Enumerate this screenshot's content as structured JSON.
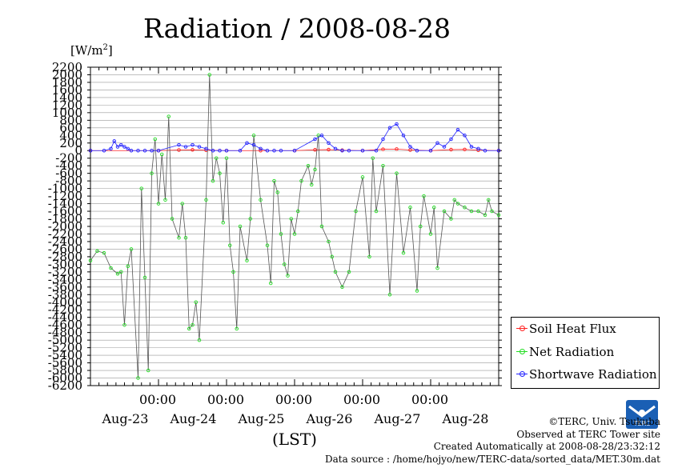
{
  "header": {
    "title": "Radiation / 2008-08-28",
    "unit_prefix": "[W/m",
    "unit_sup": "2",
    "unit_suffix": "]"
  },
  "legend": [
    {
      "name": "Soil Heat Flux",
      "color": "#ff2020"
    },
    {
      "name": "Net Radiation",
      "color": "#20dd20"
    },
    {
      "name": "Shortwave Radiation",
      "color": "#2020ff"
    }
  ],
  "credits": {
    "line1": "©TERC, Univ. Tsukuba",
    "line2": "Observed at TERC Tower site",
    "line3": "Created Automatically at 2008-08-28/23:32:12",
    "line4": "Data source : /home/hojyo/new/TERC-data/sorted_data/MET.30m.dat",
    "logo_text": "TERC"
  },
  "chart_data": {
    "type": "line",
    "title": "Radiation / 2008-08-28",
    "ylabel": "[W/m2]",
    "xlabel": "(LST)",
    "ylim": [
      -6200,
      2200
    ],
    "yticks": [
      2200,
      2000,
      1800,
      1600,
      1400,
      1200,
      1000,
      800,
      600,
      400,
      200,
      0,
      -200,
      -400,
      -600,
      -800,
      -1000,
      -1200,
      -1400,
      -1600,
      -1800,
      -2000,
      -2200,
      -2400,
      -2600,
      -2800,
      -3000,
      -3200,
      -3400,
      -3600,
      -3800,
      -4000,
      -4200,
      -4400,
      -4600,
      -4800,
      -5000,
      -5200,
      -5400,
      -5600,
      -5800,
      -6000,
      -6200
    ],
    "xlim_days": [
      -1.0,
      5.0
    ],
    "x_time_ticks": [
      "00:00",
      "00:00",
      "00:00",
      "00:00",
      "00:00"
    ],
    "x_date_labels": [
      "Aug-23",
      "Aug-24",
      "Aug-25",
      "Aug-26",
      "Aug-27",
      "Aug-28"
    ],
    "grid": true,
    "legend_position": "bottom-right",
    "series": [
      {
        "name": "Soil Heat Flux",
        "color": "#ff2020",
        "x": [
          -1.0,
          0.0,
          0.3,
          0.5,
          0.7,
          1.0,
          1.5,
          2.0,
          2.3,
          2.5,
          2.7,
          3.0,
          3.3,
          3.5,
          3.7,
          4.0,
          4.3,
          4.5,
          4.7,
          5.0
        ],
        "y": [
          0,
          0,
          15,
          20,
          10,
          0,
          0,
          0,
          20,
          25,
          10,
          0,
          35,
          40,
          15,
          0,
          25,
          30,
          10,
          0
        ]
      },
      {
        "name": "Net Radiation",
        "color": "#20dd20",
        "x": [
          -1.0,
          -0.9,
          -0.8,
          -0.7,
          -0.6,
          -0.55,
          -0.5,
          -0.45,
          -0.4,
          -0.3,
          -0.25,
          -0.2,
          -0.15,
          -0.1,
          -0.05,
          0.0,
          0.05,
          0.1,
          0.15,
          0.2,
          0.3,
          0.35,
          0.4,
          0.45,
          0.5,
          0.55,
          0.6,
          0.7,
          0.75,
          0.8,
          0.85,
          0.9,
          0.95,
          1.0,
          1.05,
          1.1,
          1.15,
          1.2,
          1.3,
          1.35,
          1.4,
          1.5,
          1.6,
          1.65,
          1.7,
          1.75,
          1.8,
          1.85,
          1.9,
          1.95,
          2.0,
          2.05,
          2.1,
          2.2,
          2.25,
          2.3,
          2.35,
          2.4,
          2.5,
          2.55,
          2.6,
          2.7,
          2.8,
          2.9,
          3.0,
          3.1,
          3.15,
          3.2,
          3.3,
          3.4,
          3.5,
          3.6,
          3.7,
          3.8,
          3.85,
          3.9,
          4.0,
          4.05,
          4.1,
          4.2,
          4.3,
          4.35,
          4.4,
          4.5,
          4.6,
          4.7,
          4.8,
          4.85,
          4.9,
          5.0
        ],
        "y": [
          -2900,
          -2650,
          -2700,
          -3100,
          -3250,
          -3200,
          -4600,
          -3050,
          -2600,
          -6000,
          -1000,
          -3350,
          -5800,
          -600,
          300,
          -1400,
          -100,
          -1300,
          900,
          -1800,
          -2300,
          -1400,
          -2300,
          -4700,
          -4600,
          -4000,
          -5000,
          -1300,
          2000,
          -800,
          -200,
          -600,
          -1900,
          -200,
          -2500,
          -3200,
          -4700,
          -2000,
          -2900,
          -1800,
          400,
          -1300,
          -2500,
          -3500,
          -800,
          -1100,
          -2200,
          -3000,
          -3300,
          -1800,
          -2200,
          -1600,
          -800,
          -400,
          -900,
          -500,
          400,
          -2000,
          -2400,
          -2800,
          -3200,
          -3600,
          -3200,
          -1600,
          -700,
          -2800,
          -200,
          -1600,
          -400,
          -3800,
          -600,
          -2700,
          -1500,
          -3700,
          -2000,
          -1200,
          -2200,
          -1500,
          -3100,
          -1600,
          -1800,
          -1300,
          -1400,
          -1500,
          -1600,
          -1600,
          -1700,
          -1300,
          -1600,
          -1700
        ]
      },
      {
        "name": "Shortwave Radiation",
        "color": "#2020ff",
        "x": [
          -1.0,
          -0.8,
          -0.7,
          -0.65,
          -0.6,
          -0.55,
          -0.5,
          -0.45,
          -0.4,
          -0.3,
          -0.2,
          -0.1,
          0.0,
          0.3,
          0.4,
          0.5,
          0.6,
          0.7,
          0.8,
          0.9,
          1.0,
          1.2,
          1.3,
          1.4,
          1.5,
          1.6,
          1.7,
          1.8,
          2.0,
          2.3,
          2.4,
          2.5,
          2.6,
          2.7,
          2.8,
          3.0,
          3.2,
          3.3,
          3.4,
          3.5,
          3.6,
          3.7,
          3.8,
          4.0,
          4.1,
          4.2,
          4.3,
          4.4,
          4.5,
          4.6,
          4.7,
          4.8,
          5.0
        ],
        "y": [
          0,
          0,
          50,
          250,
          100,
          150,
          100,
          50,
          0,
          0,
          0,
          0,
          0,
          150,
          100,
          150,
          100,
          50,
          0,
          0,
          0,
          0,
          200,
          150,
          50,
          0,
          0,
          0,
          0,
          300,
          400,
          200,
          50,
          0,
          0,
          0,
          0,
          300,
          600,
          700,
          400,
          100,
          0,
          0,
          200,
          100,
          300,
          550,
          400,
          100,
          50,
          0,
          0
        ]
      }
    ]
  }
}
